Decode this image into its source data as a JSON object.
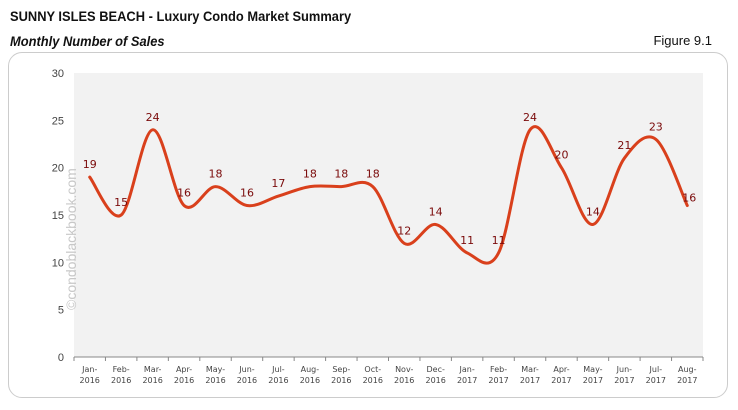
{
  "header": {
    "title": "SUNNY ISLES BEACH - Luxury Condo Market Summary",
    "subtitle": "Monthly Number of Sales",
    "figure": "Figure 9.1"
  },
  "watermark": "©condoblackbook.com",
  "colors": {
    "line": "#d9401c",
    "labels": "#7a0a0a",
    "plot_bg": "#f2f2f2"
  },
  "chart_data": {
    "type": "line",
    "smooth": true,
    "categories": [
      "Jan-2016",
      "Feb-2016",
      "Mar-2016",
      "Apr-2016",
      "May-2016",
      "Jun-2016",
      "Jul-2016",
      "Aug-2016",
      "Sep-2016",
      "Oct-2016",
      "Nov-2016",
      "Dec-2016",
      "Jan-2017",
      "Feb-2017",
      "Mar-2017",
      "Apr-2017",
      "May-2017",
      "Jun-2017",
      "Jul-2017",
      "Aug-2017"
    ],
    "values": [
      19,
      15,
      24,
      16,
      18,
      16,
      17,
      18,
      18,
      18,
      12,
      14,
      11,
      11,
      24,
      20,
      14,
      21,
      23,
      16
    ],
    "ylim": [
      0,
      30
    ],
    "yticks": [
      0,
      5,
      10,
      15,
      20,
      25,
      30
    ],
    "grid": false,
    "data_labels": true
  }
}
